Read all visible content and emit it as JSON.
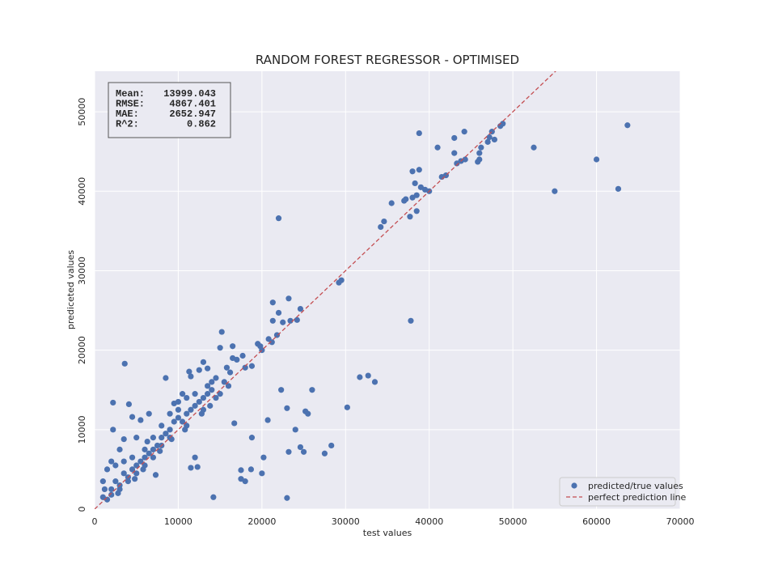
{
  "chart_data": {
    "type": "scatter",
    "title": "RANDOM FOREST REGRESSOR - OPTIMISED",
    "x_label": "test values",
    "y_label": "prediceted values",
    "xlim": [
      0,
      70000
    ],
    "ylim": [
      0,
      55100
    ],
    "xticks": [
      0,
      10000,
      20000,
      30000,
      40000,
      50000,
      60000,
      70000
    ],
    "yticks": [
      0,
      10000,
      20000,
      30000,
      40000,
      50000
    ],
    "grid": true,
    "legend": "lower right",
    "stats": [
      {
        "label": "Mean:",
        "value": 13999.043
      },
      {
        "label": "RMSE:",
        "value": 4867.401
      },
      {
        "label": "MAE:",
        "value": 2652.947
      },
      {
        "label": "R^2:",
        "value": 0.862
      }
    ],
    "series": [
      {
        "name": "predicted/true values",
        "type": "scatter",
        "color": "#4c72b0",
        "x": [
          63700,
          60000,
          62600,
          55000,
          52500,
          48800,
          48500,
          47500,
          47800,
          47200,
          47000,
          46200,
          46000,
          46000,
          45800,
          44300,
          43800,
          43300,
          43000,
          43000,
          44200,
          42000,
          41500,
          41000,
          40000,
          39500,
          39000,
          38500,
          38500,
          38300,
          38000,
          38000,
          38800,
          38800,
          37700,
          37200,
          37000,
          37800,
          35500,
          34600,
          34200,
          33500,
          32700,
          31700,
          30200,
          29500,
          29200,
          28300,
          27500,
          26000,
          25500,
          25200,
          25000,
          24600,
          24600,
          24200,
          24000,
          23400,
          23200,
          23000,
          23200,
          23000,
          22300,
          22500,
          22000,
          22000,
          21800,
          21300,
          21300,
          21200,
          20800,
          20700,
          20200,
          20000,
          19800,
          20000,
          19500,
          18800,
          18800,
          18700,
          18000,
          18000,
          17700,
          17500,
          17500,
          17000,
          16700,
          16500,
          16500,
          16200,
          15800,
          15200,
          15000,
          14200,
          14000,
          13500,
          13000,
          12500,
          12300,
          12000,
          11500,
          11500,
          11300,
          10500,
          10000,
          9500,
          8500,
          7300,
          3600,
          2200,
          2200,
          3500,
          4100,
          4500,
          5500,
          6500,
          6300,
          5000,
          3000,
          2000,
          1500,
          1000,
          1000,
          1500,
          2000,
          2500,
          3000,
          3500,
          4000,
          4500,
          5000,
          5500,
          6000,
          6500,
          7000,
          7500,
          8000,
          8500,
          9000,
          9500,
          10000,
          10500,
          11000,
          11500,
          12000,
          12500,
          13000,
          13500,
          14000,
          14500,
          15000,
          15500,
          16000,
          13000,
          11000,
          9000,
          8000,
          7000,
          6000,
          5000,
          4000,
          3000,
          2000,
          1200,
          2500,
          3500,
          4500,
          6000,
          7000,
          8000,
          9000,
          10000,
          11000,
          12000,
          13500,
          14500,
          13800,
          12800,
          10800,
          9200,
          7800,
          5800,
          4800,
          2800
        ],
        "values": [
          48300,
          44000,
          40300,
          40000,
          45500,
          48500,
          48200,
          47500,
          46500,
          46800,
          46200,
          45500,
          44800,
          44000,
          43700,
          44000,
          43800,
          43500,
          44800,
          46700,
          47500,
          42000,
          41800,
          45500,
          40000,
          40200,
          40500,
          39500,
          37500,
          41000,
          39200,
          42500,
          47300,
          42700,
          36800,
          39000,
          38800,
          23700,
          38500,
          36200,
          35500,
          16000,
          16800,
          16600,
          12800,
          28800,
          28500,
          8000,
          7000,
          15000,
          12000,
          12300,
          7200,
          7800,
          25200,
          23800,
          10000,
          23700,
          26500,
          12700,
          7200,
          1400,
          15000,
          23500,
          36600,
          24700,
          21900,
          26000,
          23700,
          21000,
          21400,
          11200,
          6500,
          4500,
          20500,
          20000,
          20800,
          18000,
          9000,
          5000,
          17800,
          3500,
          19300,
          3800,
          4900,
          18800,
          10800,
          19000,
          20500,
          17200,
          17800,
          22300,
          20300,
          1500,
          16000,
          17700,
          18500,
          17500,
          5300,
          6500,
          5200,
          16700,
          17300,
          14500,
          13500,
          13300,
          16500,
          4300,
          18300,
          13400,
          10000,
          8800,
          13200,
          11600,
          11200,
          12000,
          8500,
          9000,
          7500,
          6000,
          5000,
          3500,
          1500,
          1200,
          2500,
          3500,
          3000,
          4500,
          4000,
          5000,
          5500,
          6000,
          6500,
          7000,
          7500,
          8000,
          9000,
          9500,
          10000,
          11000,
          11500,
          11000,
          12000,
          12500,
          13000,
          13500,
          14000,
          14500,
          15000,
          14000,
          14500,
          16000,
          15500,
          12500,
          10500,
          9000,
          8000,
          6500,
          5500,
          4500,
          3500,
          2500,
          1800,
          2500,
          5500,
          6000,
          6500,
          7500,
          9000,
          10500,
          12000,
          12500,
          14000,
          14500,
          15500,
          16500,
          13000,
          12000,
          10000,
          8800,
          7300,
          5000,
          3800,
          2000
        ]
      },
      {
        "name": "perfect prediction line",
        "type": "line",
        "color": "#c44e52",
        "x": [
          0,
          70000
        ],
        "values": [
          0,
          70000
        ]
      }
    ]
  }
}
